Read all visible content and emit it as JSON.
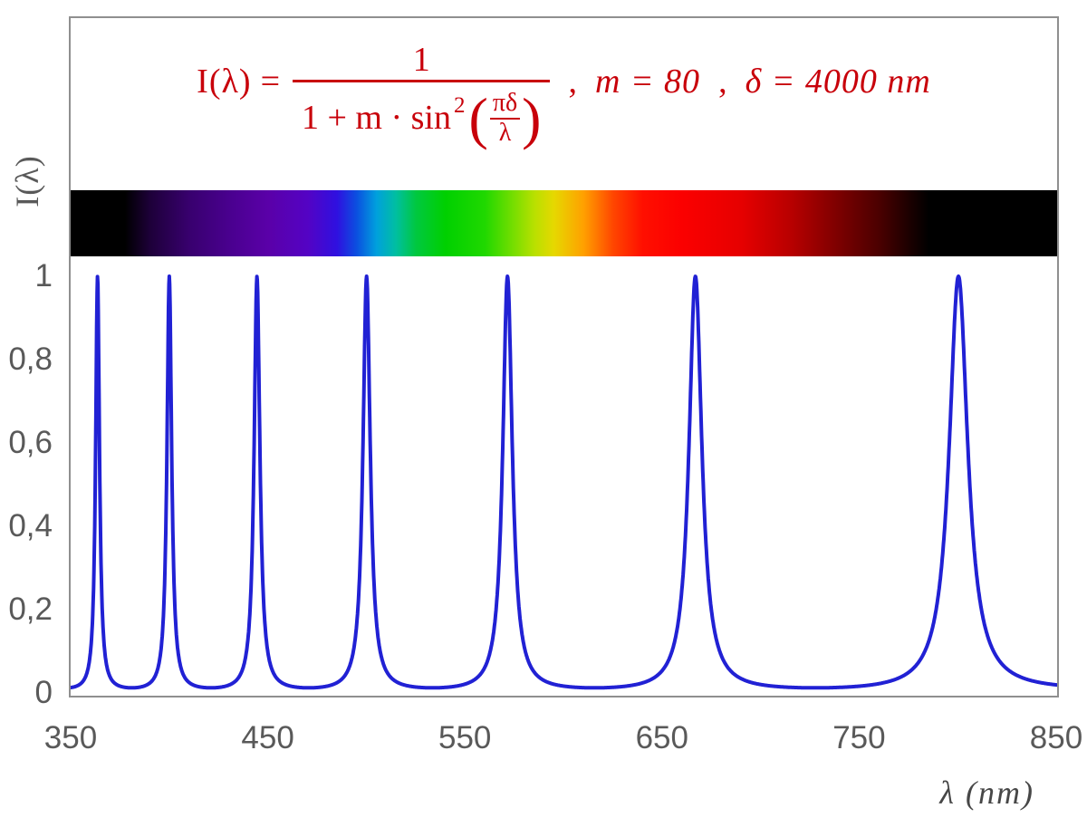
{
  "formula": {
    "lhs": "I(λ)",
    "eq": "=",
    "numerator": "1",
    "den_text": "1 + m · sin",
    "den_sup": "2",
    "lparen": "(",
    "rparen": ")",
    "inner_num": "πδ",
    "inner_den": "λ",
    "comma1": ",",
    "param_m": "m = 80",
    "comma2": ",",
    "param_delta": "δ = 4000 nm",
    "color": "#c8000a"
  },
  "chart_data": {
    "type": "line",
    "formula": "I(λ) = 1 / (1 + m·sin²(πδ/λ))",
    "params": {
      "m": 80,
      "delta_nm": 4000
    },
    "x": {
      "label": "λ  (nm)",
      "min": 350,
      "max": 850,
      "ticks": [
        350,
        450,
        550,
        650,
        750,
        850
      ]
    },
    "y": {
      "label": "I(λ)",
      "min": 0,
      "max": 1,
      "ticks": [
        {
          "v": 1,
          "label": "1"
        },
        {
          "v": 0.8,
          "label": "0,8"
        },
        {
          "v": 0.6,
          "label": "0,6"
        },
        {
          "v": 0.4,
          "label": "0,4"
        },
        {
          "v": 0.2,
          "label": "0,2"
        },
        {
          "v": 0,
          "label": "0"
        }
      ]
    },
    "peaks_nm": [
      363.6,
      400,
      444.4,
      500,
      571.4,
      666.7,
      800
    ],
    "peak_value": 1,
    "trough_value": 0.0123,
    "sample_step_nm": 0.2,
    "curve_color": "#2121d4",
    "curve_width": 4,
    "grid": "off",
    "legend": "none",
    "spectrum_bar": {
      "description": "visible-light spectrum strip mapped to 350-850 nm axis",
      "gradient_stops": [
        {
          "pos": 0,
          "color": "#000000"
        },
        {
          "pos": 5.5,
          "color": "#000000"
        },
        {
          "pos": 8,
          "color": "#1d0038"
        },
        {
          "pos": 12,
          "color": "#38006e"
        },
        {
          "pos": 16,
          "color": "#49008e"
        },
        {
          "pos": 20,
          "color": "#5a00a8"
        },
        {
          "pos": 24,
          "color": "#5403c4"
        },
        {
          "pos": 27,
          "color": "#2f10e0"
        },
        {
          "pos": 29,
          "color": "#0b50e0"
        },
        {
          "pos": 31,
          "color": "#00a0dd"
        },
        {
          "pos": 33,
          "color": "#00bfa0"
        },
        {
          "pos": 35,
          "color": "#00c840"
        },
        {
          "pos": 38,
          "color": "#00d000"
        },
        {
          "pos": 42,
          "color": "#20d800"
        },
        {
          "pos": 45,
          "color": "#7ade00"
        },
        {
          "pos": 47,
          "color": "#b8e000"
        },
        {
          "pos": 49,
          "color": "#e6d800"
        },
        {
          "pos": 52,
          "color": "#ffa000"
        },
        {
          "pos": 55,
          "color": "#ff4600"
        },
        {
          "pos": 58,
          "color": "#ff0f00"
        },
        {
          "pos": 62,
          "color": "#fb0000"
        },
        {
          "pos": 68,
          "color": "#e60000"
        },
        {
          "pos": 73,
          "color": "#b80000"
        },
        {
          "pos": 78,
          "color": "#7a0000"
        },
        {
          "pos": 82,
          "color": "#4a0000"
        },
        {
          "pos": 85,
          "color": "#1c0000"
        },
        {
          "pos": 87,
          "color": "#000000"
        },
        {
          "pos": 100,
          "color": "#000000"
        }
      ]
    }
  },
  "style": {
    "axis_text_color": "#595959",
    "plot_border_color": "#8f8f8f",
    "formula_color": "#c8000a"
  }
}
